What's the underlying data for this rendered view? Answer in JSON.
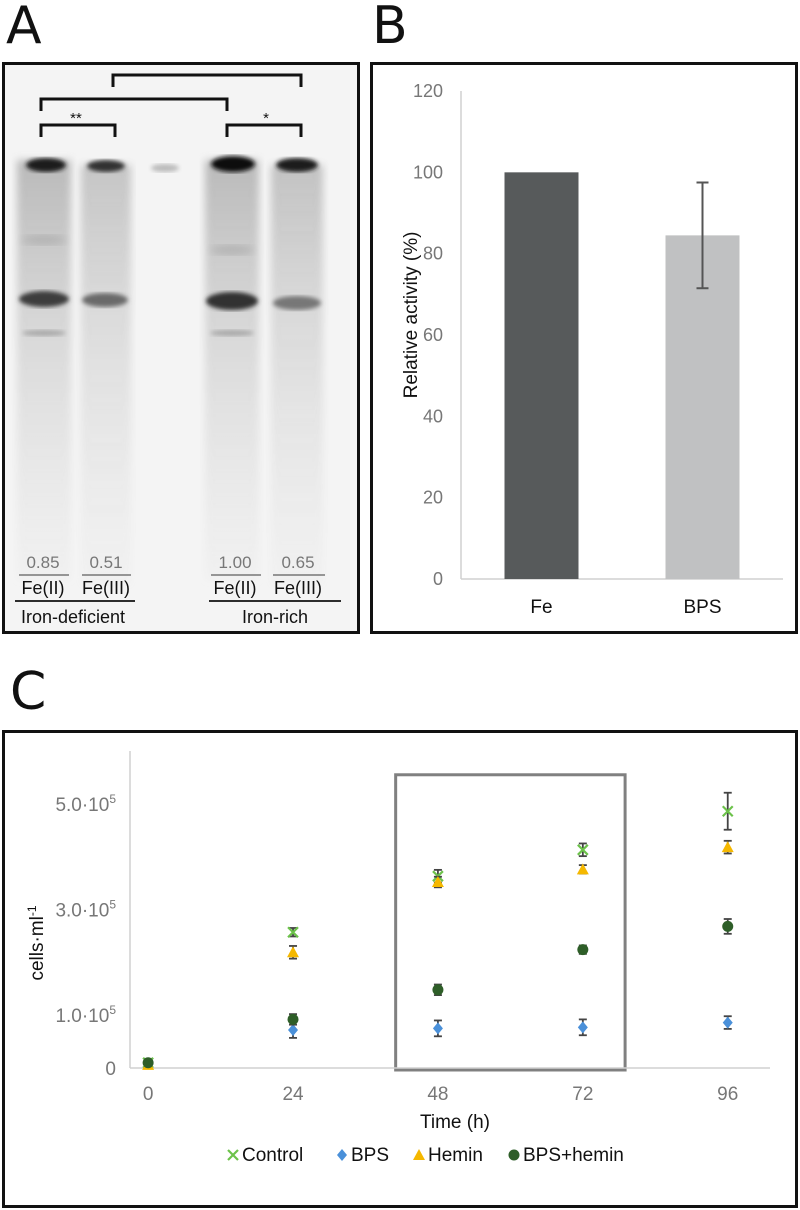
{
  "panels": {
    "a": "A",
    "b": "B",
    "c": "C"
  },
  "gel": {
    "significance": [
      "**",
      "*"
    ],
    "lanes": [
      {
        "value": "0.85",
        "label": "Fe(II)"
      },
      {
        "value": "0.51",
        "label": "Fe(III)"
      },
      {
        "value": "1.00",
        "label": "Fe(II)"
      },
      {
        "value": "0.65",
        "label": "Fe(III)"
      }
    ],
    "groups": [
      "Iron-deficient",
      "Iron-rich"
    ]
  },
  "chart_data": [
    {
      "type": "bar",
      "categories": [
        "Fe",
        "BPS"
      ],
      "values": [
        100,
        84.5
      ],
      "errors": [
        0,
        13
      ],
      "colors": [
        "#575a5b",
        "#c0c1c2"
      ],
      "ylabel": "Relative activity (%)",
      "ylim": [
        0,
        120
      ],
      "yticks": [
        "0",
        "20",
        "40",
        "60",
        "80",
        "100",
        "120"
      ]
    },
    {
      "type": "scatter",
      "xlabel": "Time (h)",
      "ylabel": "cells·ml",
      "ylabel_sup": "-1",
      "x": [
        0,
        24,
        48,
        72,
        96
      ],
      "xticks": [
        "0",
        "24",
        "48",
        "72",
        "96"
      ],
      "ylim": [
        0,
        600000
      ],
      "yticks": [
        {
          "value": 0,
          "base": "0",
          "exp": ""
        },
        {
          "value": 100000,
          "base": "1.0·10",
          "exp": "5"
        },
        {
          "value": 300000,
          "base": "3.0·10",
          "exp": "5"
        },
        {
          "value": 500000,
          "base": "5.0·10",
          "exp": "5"
        }
      ],
      "highlight_x_range": [
        41,
        79
      ],
      "series": [
        {
          "name": "Control",
          "marker": "x",
          "color": "#6cc24a",
          "values": [
            10000,
            257000,
            363000,
            413000,
            486000
          ],
          "errors": [
            3000,
            8000,
            12000,
            12000,
            35000
          ]
        },
        {
          "name": "BPS",
          "marker": "diamond",
          "color": "#4a90d9",
          "values": [
            8000,
            72000,
            75000,
            77000,
            86000
          ],
          "errors": [
            3000,
            15000,
            15000,
            15000,
            12000
          ]
        },
        {
          "name": "Hemin",
          "marker": "triangle",
          "color": "#f5b800",
          "values": [
            6000,
            219000,
            352000,
            376000,
            418000
          ],
          "errors": [
            3000,
            12000,
            10000,
            8000,
            12000
          ]
        },
        {
          "name": "BPS+hemin",
          "marker": "circle",
          "color": "#2e5e28",
          "values": [
            10000,
            92000,
            148000,
            224000,
            268000
          ],
          "errors": [
            3000,
            10000,
            10000,
            8000,
            14000
          ]
        }
      ]
    }
  ]
}
